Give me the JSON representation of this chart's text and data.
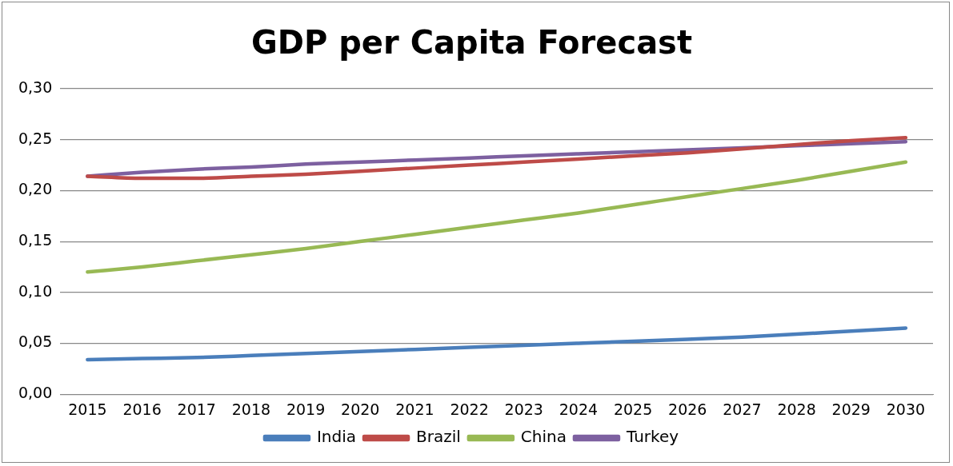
{
  "chart_data": {
    "type": "line",
    "title": "GDP per Capita Forecast",
    "categories": [
      "2015",
      "2016",
      "2017",
      "2018",
      "2019",
      "2020",
      "2021",
      "2022",
      "2023",
      "2024",
      "2025",
      "2026",
      "2027",
      "2028",
      "2029",
      "2030"
    ],
    "series": [
      {
        "name": "India",
        "color": "#4a7ebb",
        "values": [
          0.034,
          0.035,
          0.036,
          0.038,
          0.04,
          0.042,
          0.044,
          0.046,
          0.048,
          0.05,
          0.052,
          0.054,
          0.056,
          0.059,
          0.062,
          0.065
        ]
      },
      {
        "name": "Brazil",
        "color": "#be4b48",
        "values": [
          0.214,
          0.212,
          0.212,
          0.214,
          0.216,
          0.219,
          0.222,
          0.225,
          0.228,
          0.231,
          0.234,
          0.237,
          0.241,
          0.245,
          0.249,
          0.252
        ]
      },
      {
        "name": "China",
        "color": "#98b954",
        "values": [
          0.12,
          0.125,
          0.131,
          0.137,
          0.143,
          0.15,
          0.157,
          0.164,
          0.171,
          0.178,
          0.186,
          0.194,
          0.202,
          0.21,
          0.219,
          0.228
        ]
      },
      {
        "name": "Turkey",
        "color": "#7d60a0",
        "values": [
          0.214,
          0.218,
          0.221,
          0.223,
          0.226,
          0.228,
          0.23,
          0.232,
          0.234,
          0.236,
          0.238,
          0.24,
          0.242,
          0.244,
          0.246,
          0.248
        ]
      }
    ],
    "ylim": [
      0,
      0.3
    ],
    "yticks": [
      {
        "value": 0,
        "label": "0,00"
      },
      {
        "value": 0.05,
        "label": "0,05"
      },
      {
        "value": 0.1,
        "label": "0,10"
      },
      {
        "value": 0.15,
        "label": "0,15"
      },
      {
        "value": 0.2,
        "label": "0,20"
      },
      {
        "value": 0.25,
        "label": "0,25"
      },
      {
        "value": 0.3,
        "label": "0,30"
      }
    ],
    "grid": "y",
    "legend": "bottom",
    "marker": "none",
    "line_style": "solid"
  }
}
